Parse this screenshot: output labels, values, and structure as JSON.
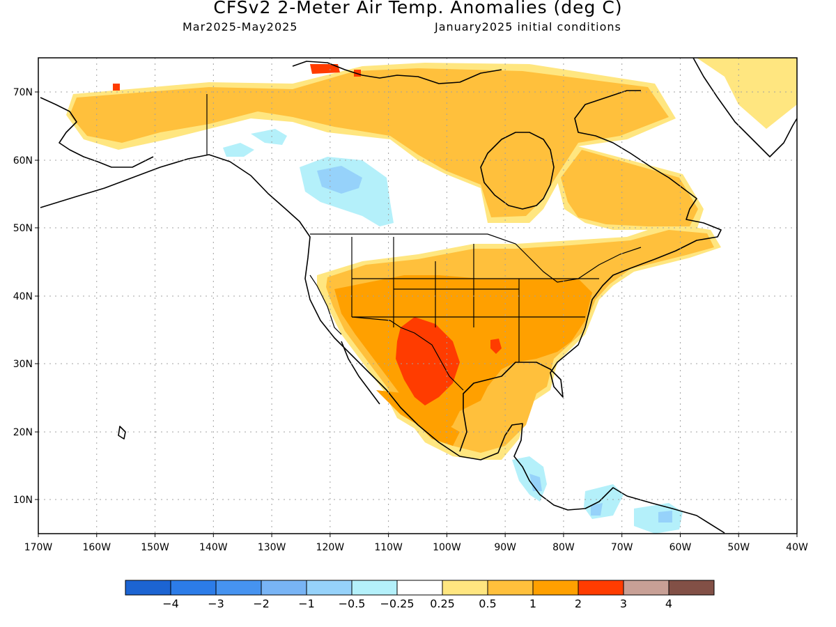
{
  "header": {
    "title": "CFSv2 2-Meter Air Temp. Anomalies (deg C)",
    "period": "Mar2025-May2025",
    "init": "January2025 initial conditions"
  },
  "axes": {
    "lat_labels": [
      "10N",
      "20N",
      "30N",
      "40N",
      "50N",
      "60N",
      "70N"
    ],
    "lon_labels": [
      "170W",
      "160W",
      "150W",
      "140W",
      "130W",
      "120W",
      "110W",
      "100W",
      "90W",
      "80W",
      "70W",
      "60W",
      "50W",
      "40W"
    ]
  },
  "legend": {
    "colors": [
      "#1c64d2",
      "#2c7ce8",
      "#4693f0",
      "#78b4f5",
      "#96d2fa",
      "#b4f0fa",
      "#ffffff",
      "#ffe680",
      "#ffc03c",
      "#ffa000",
      "#ff3c00",
      "#c8a096",
      "#825046"
    ],
    "labels": [
      "−4",
      "−3",
      "−2",
      "−1",
      "−0.5",
      "−0.25",
      "0.25",
      "0.5",
      "1",
      "2",
      "3",
      "4"
    ]
  }
}
